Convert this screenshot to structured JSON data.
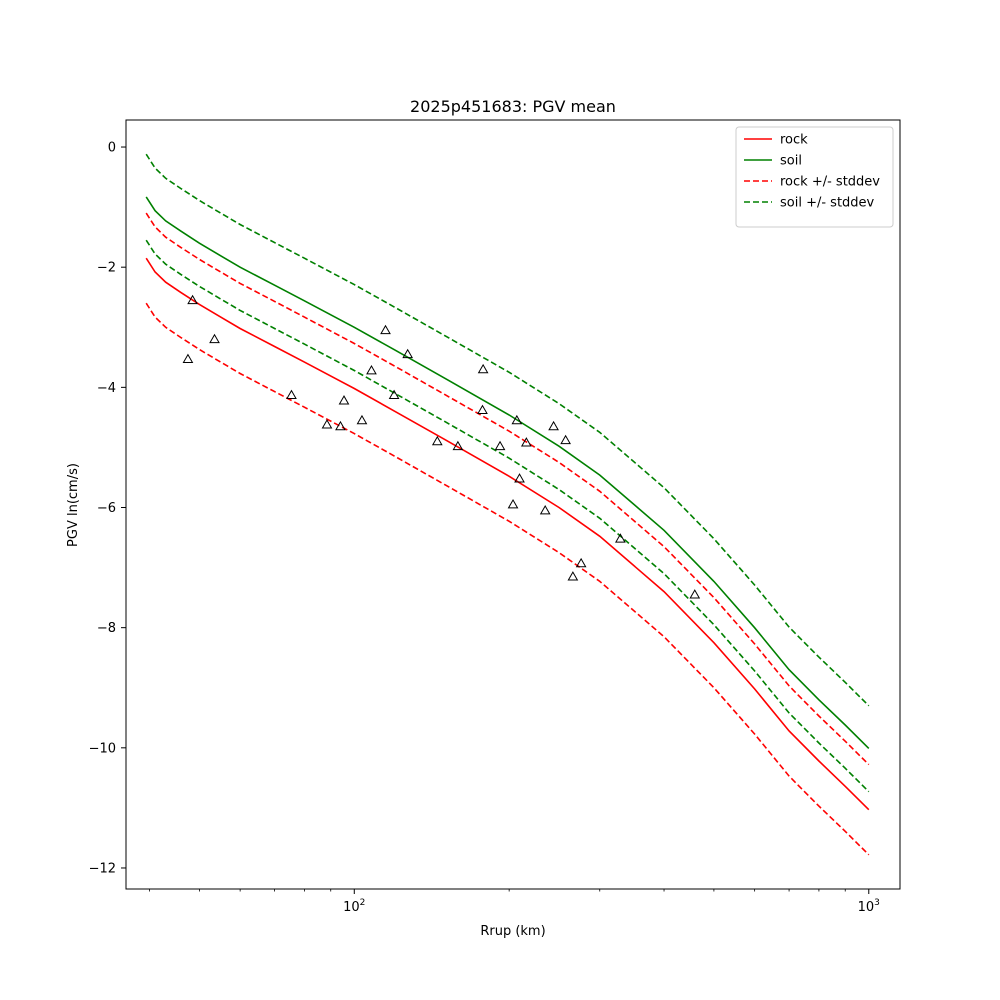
{
  "chart_data": {
    "type": "line",
    "title": "2025p451683: PGV mean",
    "xlabel": "Rrup (km)",
    "ylabel": "PGV ln(cm/s)",
    "xscale": "log",
    "xlim": [
      36,
      1150
    ],
    "ylim": [
      -12.35,
      0.45
    ],
    "xtick_values": [
      100,
      1000
    ],
    "xtick_labels": [
      {
        "base": "10",
        "exp": "2"
      },
      {
        "base": "10",
        "exp": "3"
      }
    ],
    "ytick_values": [
      0,
      -2,
      -4,
      -6,
      -8,
      -10,
      -12
    ],
    "ytick_labels": [
      "0",
      "−2",
      "−4",
      "−6",
      "−8",
      "−10",
      "−12"
    ],
    "grid": false,
    "legend_position": "top-right",
    "x": [
      39.4,
      41,
      43,
      46,
      50,
      55,
      60,
      70,
      80,
      100,
      120,
      150,
      200,
      250,
      300,
      400,
      500,
      600,
      700,
      800,
      900,
      1000
    ],
    "series": [
      {
        "name": "rock",
        "color": "#ff0000",
        "dash": "solid",
        "values": [
          -1.85,
          -2.08,
          -2.25,
          -2.42,
          -2.62,
          -2.83,
          -3.02,
          -3.32,
          -3.58,
          -4.02,
          -4.4,
          -4.87,
          -5.48,
          -6.0,
          -6.48,
          -7.4,
          -8.25,
          -9.02,
          -9.72,
          -10.22,
          -10.64,
          -11.03
        ]
      },
      {
        "name": "soil",
        "color": "#008000",
        "dash": "solid",
        "values": [
          -0.83,
          -1.06,
          -1.23,
          -1.4,
          -1.6,
          -1.81,
          -2.0,
          -2.3,
          -2.56,
          -3.0,
          -3.38,
          -3.85,
          -4.46,
          -4.98,
          -5.46,
          -6.38,
          -7.23,
          -8.0,
          -8.7,
          -9.2,
          -9.62,
          -10.01
        ]
      },
      {
        "name": "rock +/- stddev",
        "color": "#ff0000",
        "dash": "dashed",
        "values": [
          -1.1,
          -1.33,
          -1.5,
          -1.67,
          -1.87,
          -2.08,
          -2.27,
          -2.57,
          -2.83,
          -3.27,
          -3.65,
          -4.12,
          -4.73,
          -5.25,
          -5.73,
          -6.65,
          -7.5,
          -8.27,
          -8.97,
          -9.47,
          -9.89,
          -10.28
        ]
      },
      {
        "name": "",
        "color": "#ff0000",
        "dash": "dashed",
        "values": [
          -2.6,
          -2.83,
          -3.0,
          -3.17,
          -3.37,
          -3.58,
          -3.77,
          -4.07,
          -4.33,
          -4.77,
          -5.15,
          -5.62,
          -6.23,
          -6.75,
          -7.23,
          -8.15,
          -9.0,
          -9.77,
          -10.47,
          -10.97,
          -11.39,
          -11.78
        ]
      },
      {
        "name": "soil +/- stddev",
        "color": "#008000",
        "dash": "dashed",
        "values": [
          -0.12,
          -0.35,
          -0.52,
          -0.69,
          -0.89,
          -1.1,
          -1.29,
          -1.59,
          -1.85,
          -2.29,
          -2.67,
          -3.14,
          -3.75,
          -4.27,
          -4.75,
          -5.67,
          -6.52,
          -7.29,
          -7.99,
          -8.49,
          -8.91,
          -9.3
        ]
      },
      {
        "name": "",
        "color": "#008000",
        "dash": "dashed",
        "values": [
          -1.55,
          -1.78,
          -1.95,
          -2.12,
          -2.32,
          -2.53,
          -2.72,
          -3.02,
          -3.28,
          -3.72,
          -4.1,
          -4.57,
          -5.18,
          -5.7,
          -6.18,
          -7.1,
          -7.95,
          -8.72,
          -9.42,
          -9.92,
          -10.34,
          -10.73
        ]
      }
    ],
    "observations": [
      {
        "x": 48.5,
        "y": -2.55
      },
      {
        "x": 47.5,
        "y": -3.53
      },
      {
        "x": 53.5,
        "y": -3.2
      },
      {
        "x": 75.5,
        "y": -4.13
      },
      {
        "x": 88.5,
        "y": -4.62
      },
      {
        "x": 94.0,
        "y": -4.65
      },
      {
        "x": 95.5,
        "y": -4.22
      },
      {
        "x": 103.5,
        "y": -4.55
      },
      {
        "x": 108.0,
        "y": -3.72
      },
      {
        "x": 115.0,
        "y": -3.05
      },
      {
        "x": 119.5,
        "y": -4.13
      },
      {
        "x": 127.0,
        "y": -3.45
      },
      {
        "x": 145.0,
        "y": -4.9
      },
      {
        "x": 159.0,
        "y": -4.98
      },
      {
        "x": 177.5,
        "y": -4.38
      },
      {
        "x": 178.0,
        "y": -3.7
      },
      {
        "x": 192.0,
        "y": -4.98
      },
      {
        "x": 203.5,
        "y": -5.95
      },
      {
        "x": 207.0,
        "y": -4.55
      },
      {
        "x": 209.5,
        "y": -5.52
      },
      {
        "x": 216.0,
        "y": -4.92
      },
      {
        "x": 235.0,
        "y": -6.05
      },
      {
        "x": 244.0,
        "y": -4.65
      },
      {
        "x": 257.5,
        "y": -4.88
      },
      {
        "x": 266.0,
        "y": -7.15
      },
      {
        "x": 276.0,
        "y": -6.93
      },
      {
        "x": 329.0,
        "y": -6.52
      },
      {
        "x": 459.0,
        "y": -7.45
      }
    ]
  }
}
